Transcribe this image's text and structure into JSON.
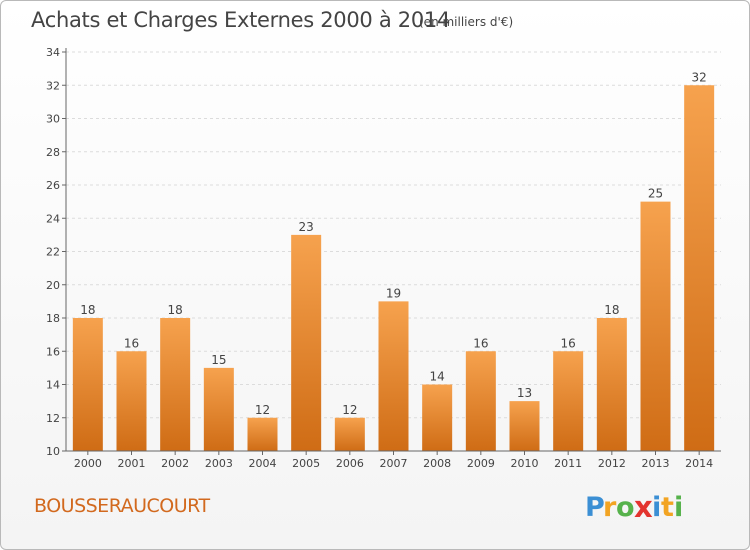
{
  "title": "Achats et Charges Externes 2000 à 2014",
  "subtitle": "(en milliers d'€)",
  "commune": "BOUSSERAUCOURT",
  "logo_text": "Proxiti",
  "colors": {
    "bar_top": "#f6a24e",
    "bar_bottom": "#cf6c15",
    "commune": "#d2691e",
    "title": "#444444"
  },
  "chart_data": {
    "type": "bar",
    "title": "Achats et Charges Externes 2000 à 2014",
    "subtitle": "(en milliers d'€)",
    "xlabel": "",
    "ylabel": "",
    "categories": [
      "2000",
      "2001",
      "2002",
      "2003",
      "2004",
      "2005",
      "2006",
      "2007",
      "2008",
      "2009",
      "2010",
      "2011",
      "2012",
      "2013",
      "2014"
    ],
    "values": [
      18,
      16,
      18,
      15,
      12,
      23,
      12,
      19,
      14,
      16,
      13,
      16,
      18,
      25,
      32
    ],
    "ylim": [
      10,
      34
    ],
    "yticks": [
      10,
      12,
      14,
      16,
      18,
      20,
      22,
      24,
      26,
      28,
      30,
      32,
      34
    ],
    "grid": true,
    "data_labels": true
  }
}
